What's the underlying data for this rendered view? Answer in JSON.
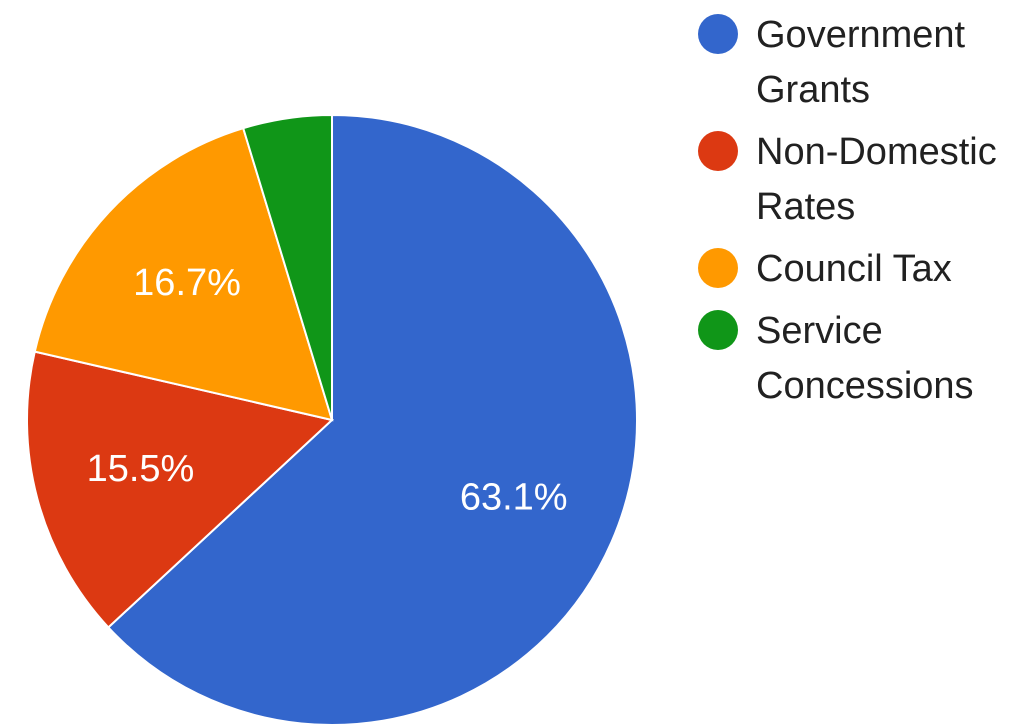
{
  "chart_data": {
    "type": "pie",
    "categories": [
      "Government Grants",
      "Non-Domestic Rates",
      "Council Tax",
      "Service Concessions"
    ],
    "values": [
      63.1,
      15.5,
      16.7,
      4.7
    ],
    "labels": [
      "63.1%",
      "15.5%",
      "16.7%",
      ""
    ],
    "colors": [
      "#3366cc",
      "#dc3912",
      "#ff9900",
      "#109618"
    ],
    "legend_position": "right"
  }
}
